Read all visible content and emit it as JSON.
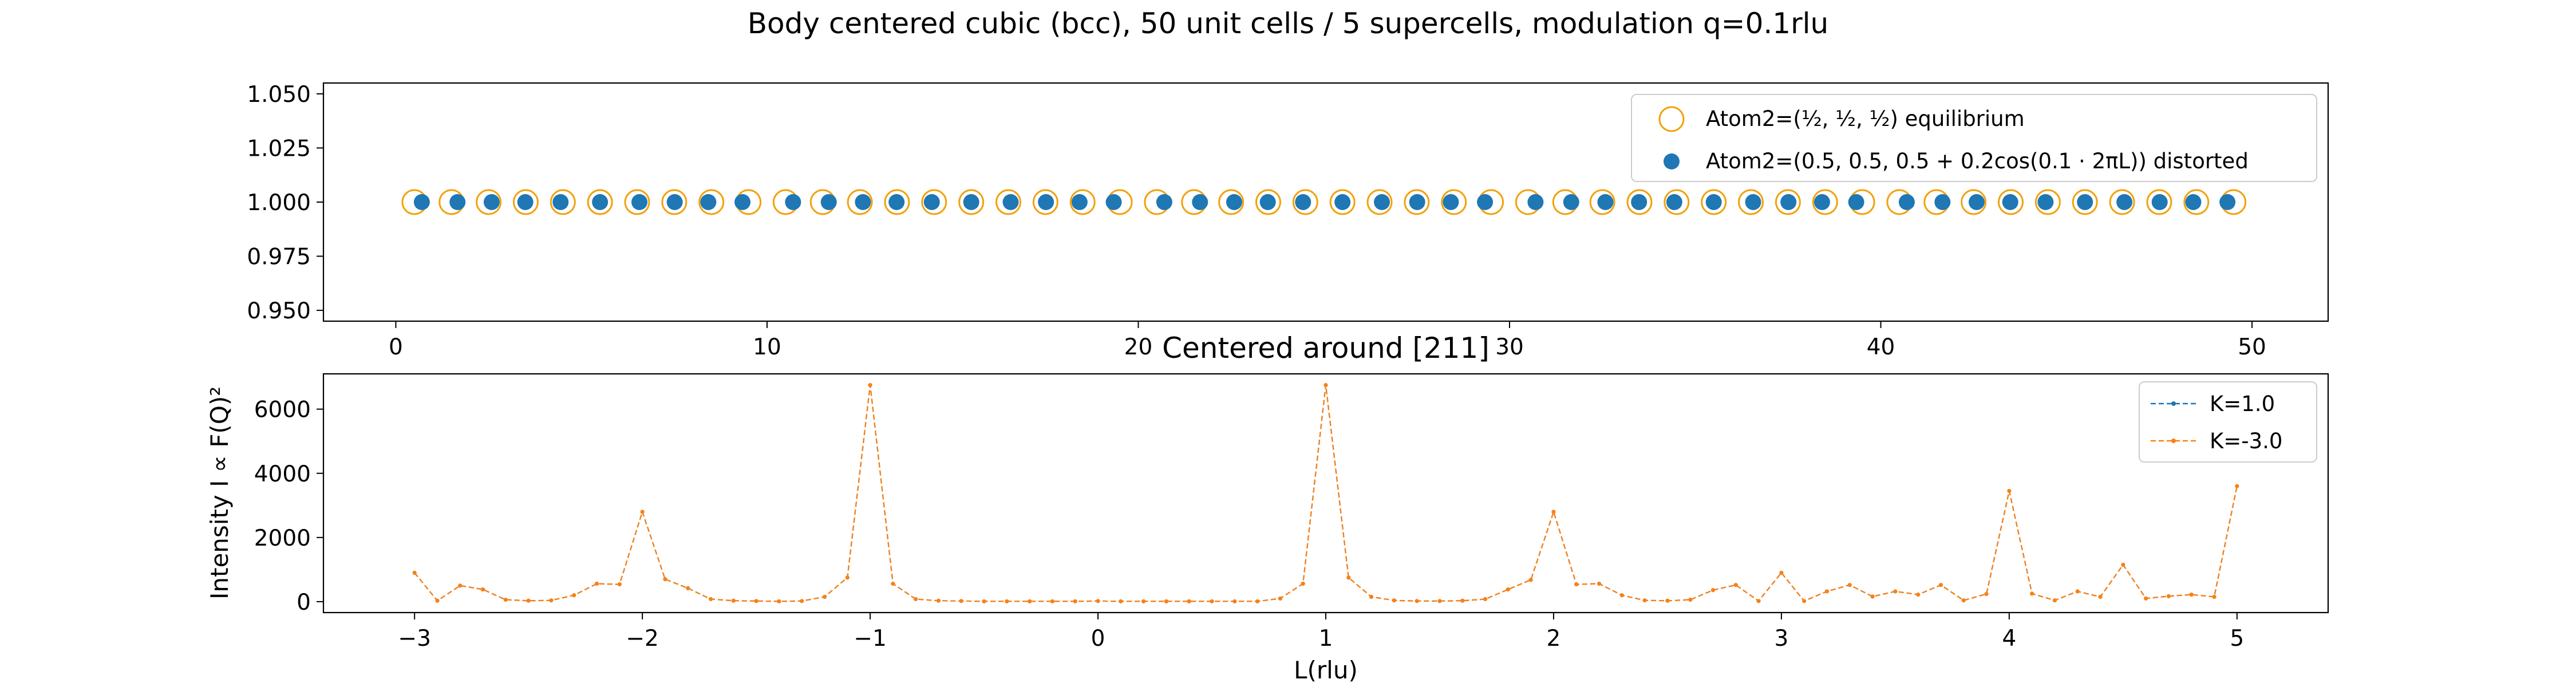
{
  "figure": {
    "title": "Body centered cubic (bcc), 50 unit cells / 5 supercells, modulation q=0.1rlu"
  },
  "colors": {
    "blue": "#1f77b4",
    "orange": "#ff7f0e",
    "orange_ring": "#f2a20c",
    "frame": "#000000"
  },
  "chart_data": [
    {
      "type": "scatter",
      "title": "",
      "xlabel": "",
      "ylabel": "",
      "xlim": [
        -1.95,
        52.05
      ],
      "ylim": [
        0.945,
        1.055
      ],
      "xticks": [
        "0",
        "10",
        "20",
        "30",
        "40",
        "50"
      ],
      "yticks": [
        "0.950",
        "0.975",
        "1.000",
        "1.025",
        "1.050"
      ],
      "legend_position": "upper right",
      "series": [
        {
          "name": "Atom2=(½, ½, ½) equilibrium",
          "marker": "open-circle",
          "color": "#f2a20c",
          "x": [
            0.5,
            1.5,
            2.5,
            3.5,
            4.5,
            5.5,
            6.5,
            7.5,
            8.5,
            9.5,
            10.5,
            11.5,
            12.5,
            13.5,
            14.5,
            15.5,
            16.5,
            17.5,
            18.5,
            19.5,
            20.5,
            21.5,
            22.5,
            23.5,
            24.5,
            25.5,
            26.5,
            27.5,
            28.5,
            29.5,
            30.5,
            31.5,
            32.5,
            33.5,
            34.5,
            35.5,
            36.5,
            37.5,
            38.5,
            39.5,
            40.5,
            41.5,
            42.5,
            43.5,
            44.5,
            45.5,
            46.5,
            47.5,
            48.5,
            49.5
          ],
          "y": 1.0
        },
        {
          "name": "Atom2=(0.5, 0.5, 0.5 + 0.2cos(0.1 · 2πL)) distorted",
          "marker": "filled-circle",
          "color": "#1f77b4",
          "x": [
            0.7,
            1.662,
            2.582,
            3.488,
            4.438,
            5.5,
            6.562,
            7.512,
            8.418,
            9.338,
            10.7,
            11.662,
            12.582,
            13.488,
            14.438,
            15.5,
            16.562,
            17.512,
            18.418,
            19.338,
            20.7,
            21.662,
            22.582,
            23.488,
            24.438,
            25.5,
            26.562,
            27.512,
            28.418,
            29.338,
            30.7,
            31.662,
            32.582,
            33.488,
            34.438,
            35.5,
            36.562,
            37.512,
            38.418,
            39.338,
            40.7,
            41.662,
            42.582,
            43.488,
            44.438,
            45.5,
            46.562,
            47.512,
            48.418,
            49.338
          ],
          "y": 1.0
        }
      ]
    },
    {
      "type": "line",
      "title": "Centered around [211]",
      "xlabel": "L(rlu)",
      "ylabel": "Intensity I ∝ F(Q)²",
      "xlim": [
        -3.4,
        5.4
      ],
      "ylim": [
        -340,
        7100
      ],
      "xticks": [
        "−3",
        "−2",
        "−1",
        "0",
        "1",
        "2",
        "3",
        "4",
        "5"
      ],
      "yticks": [
        "0",
        "2000",
        "4000",
        "6000"
      ],
      "legend_position": "upper right",
      "x": [
        -3.0,
        -2.9,
        -2.8,
        -2.7,
        -2.6,
        -2.5,
        -2.4,
        -2.3,
        -2.2,
        -2.1,
        -2.0,
        -1.9,
        -1.8,
        -1.7,
        -1.6,
        -1.5,
        -1.4,
        -1.3,
        -1.2,
        -1.1,
        -1.0,
        -0.9,
        -0.8,
        -0.7,
        -0.6,
        -0.5,
        -0.4,
        -0.3,
        -0.2,
        -0.1,
        0.0,
        0.1,
        0.2,
        0.3,
        0.4,
        0.5,
        0.6,
        0.7,
        0.8,
        0.9,
        1.0,
        1.1,
        1.2,
        1.3,
        1.4,
        1.5,
        1.6,
        1.7,
        1.8,
        1.9,
        2.0,
        2.1,
        2.2,
        2.3,
        2.4,
        2.5,
        2.6,
        2.7,
        2.8,
        2.9,
        3.0,
        3.1,
        3.2,
        3.3,
        3.4,
        3.5,
        3.6,
        3.7,
        3.8,
        3.9,
        4.0,
        4.1,
        4.2,
        4.3,
        4.4,
        4.5,
        4.6,
        4.7,
        4.8,
        4.9,
        5.0
      ],
      "series": [
        {
          "name": "K=1.0",
          "color": "#1f77b4",
          "values": [
            900,
            30,
            500,
            380,
            60,
            30,
            40,
            200,
            560,
            540,
            2800,
            700,
            420,
            80,
            30,
            20,
            10,
            20,
            150,
            750,
            6750,
            560,
            80,
            30,
            20,
            10,
            10,
            10,
            10,
            10,
            20,
            10,
            10,
            10,
            10,
            10,
            10,
            10,
            100,
            560,
            6750,
            750,
            150,
            40,
            20,
            20,
            30,
            80,
            380,
            680,
            2800,
            540,
            560,
            200,
            40,
            30,
            60,
            360,
            520,
            20,
            900,
            20,
            320,
            520,
            160,
            320,
            220,
            520,
            40,
            240,
            3450,
            250,
            40,
            320,
            150,
            1150,
            100,
            170,
            220,
            150,
            3600
          ]
        },
        {
          "name": "K=-3.0",
          "color": "#ff7f0e",
          "values": [
            900,
            30,
            500,
            380,
            60,
            30,
            40,
            200,
            560,
            540,
            2800,
            700,
            420,
            80,
            30,
            20,
            10,
            20,
            150,
            750,
            6750,
            560,
            80,
            30,
            20,
            10,
            10,
            10,
            10,
            10,
            20,
            10,
            10,
            10,
            10,
            10,
            10,
            10,
            100,
            560,
            6750,
            750,
            150,
            40,
            20,
            20,
            30,
            80,
            380,
            680,
            2800,
            540,
            560,
            200,
            40,
            30,
            60,
            360,
            520,
            20,
            900,
            20,
            320,
            520,
            160,
            320,
            220,
            520,
            40,
            240,
            3450,
            250,
            40,
            320,
            150,
            1150,
            100,
            170,
            220,
            150,
            3600
          ]
        }
      ]
    }
  ]
}
